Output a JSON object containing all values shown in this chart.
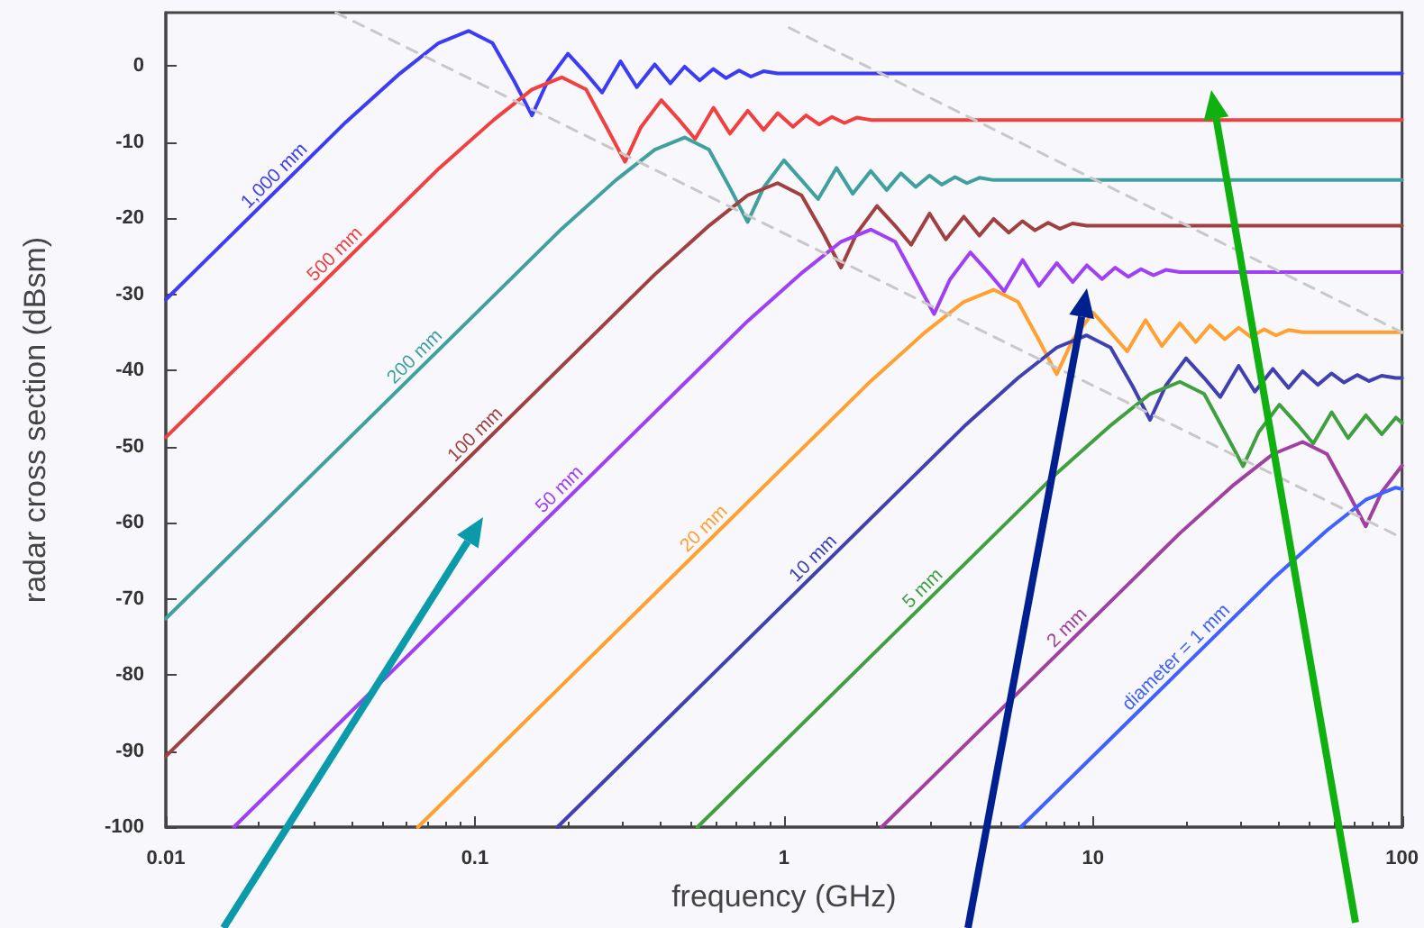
{
  "chart_data": {
    "type": "line",
    "xlabel": "frequency (GHz)",
    "ylabel": "radar cross section (dBsm)",
    "log": "x",
    "xlim": [
      0.01,
      100
    ],
    "xticks": [
      0.01,
      0.1,
      1,
      10,
      100
    ],
    "ylim": [
      -100,
      7
    ],
    "yticks": [
      -100,
      -90,
      -80,
      -70,
      -60,
      -50,
      -40,
      -30,
      -20,
      -10,
      0
    ],
    "grid": false,
    "legend": false,
    "marker": "none",
    "series": [
      {
        "name": "1,000 mm",
        "color": "#3c3cf5",
        "x": [
          0.01,
          0.0382,
          0.0572,
          0.0763,
          0.0954,
          0.114,
          0.134,
          0.153,
          0.172,
          0.2,
          0.229,
          0.258,
          0.296,
          0.334,
          0.382,
          0.429,
          0.477,
          0.534,
          0.591,
          0.649,
          0.716,
          0.782,
          0.859,
          0.954,
          100
        ],
        "values": [
          -30.7,
          -7.4,
          -1.0,
          3.0,
          4.6,
          3.0,
          -2.0,
          -6.5,
          -2.0,
          1.6,
          -1.0,
          -3.5,
          0.6,
          -2.8,
          0.2,
          -2.3,
          -0.1,
          -1.9,
          -0.4,
          -1.6,
          -0.6,
          -1.4,
          -0.7,
          -1.0,
          -1.0
        ]
      },
      {
        "name": "500 mm",
        "color": "#f04040",
        "x": [
          0.01,
          0.0764,
          0.115,
          0.153,
          0.191,
          0.229,
          0.267,
          0.306,
          0.344,
          0.401,
          0.458,
          0.516,
          0.592,
          0.669,
          0.764,
          0.86,
          0.955,
          1.07,
          1.18,
          1.3,
          1.43,
          1.57,
          1.72,
          1.91,
          100
        ],
        "values": [
          -48.8,
          -13.5,
          -7.1,
          -3.1,
          -1.5,
          -3.1,
          -8.1,
          -12.6,
          -8.1,
          -4.5,
          -7.1,
          -9.6,
          -5.5,
          -8.9,
          -5.9,
          -8.4,
          -6.2,
          -8.0,
          -6.5,
          -7.7,
          -6.7,
          -7.5,
          -6.8,
          -7.1,
          -7.1
        ]
      },
      {
        "name": "200 mm",
        "color": "#40a0a0",
        "x": [
          0.01,
          0.191,
          0.286,
          0.382,
          0.477,
          0.572,
          0.668,
          0.763,
          0.859,
          1.0,
          1.14,
          1.29,
          1.48,
          1.67,
          1.91,
          2.15,
          2.39,
          2.67,
          2.96,
          3.24,
          3.58,
          3.91,
          4.29,
          4.77,
          100
        ],
        "values": [
          -72.6,
          -21.4,
          -15.0,
          -11.0,
          -9.4,
          -11.0,
          -16.0,
          -20.5,
          -16.0,
          -12.4,
          -15.0,
          -17.5,
          -13.4,
          -16.8,
          -13.8,
          -16.3,
          -14.1,
          -15.9,
          -14.4,
          -15.6,
          -14.6,
          -15.4,
          -14.7,
          -15.0,
          -15.0
        ]
      },
      {
        "name": "100 mm",
        "color": "#a04040",
        "x": [
          0.01,
          0.382,
          0.572,
          0.763,
          0.954,
          1.14,
          1.34,
          1.53,
          1.72,
          2.0,
          2.29,
          2.58,
          2.96,
          3.34,
          3.82,
          4.29,
          4.77,
          5.34,
          5.91,
          6.49,
          7.16,
          7.82,
          8.59,
          9.54,
          100
        ],
        "values": [
          -90.7,
          -27.4,
          -21.0,
          -17.0,
          -15.4,
          -17.0,
          -22.0,
          -26.5,
          -22.0,
          -18.4,
          -21.0,
          -23.5,
          -19.4,
          -22.8,
          -19.8,
          -22.3,
          -20.1,
          -21.9,
          -20.4,
          -21.6,
          -20.6,
          -21.4,
          -20.7,
          -21.0,
          -21.0
        ]
      },
      {
        "name": "50 mm",
        "color": "#a040f5",
        "x": [
          0.0166,
          0.764,
          1.15,
          1.53,
          1.91,
          2.29,
          2.67,
          3.06,
          3.44,
          4.01,
          4.58,
          5.16,
          5.92,
          6.69,
          7.64,
          8.6,
          9.55,
          10.7,
          11.8,
          13.0,
          14.3,
          15.7,
          17.2,
          19.1,
          100
        ],
        "values": [
          -100,
          -33.5,
          -27.1,
          -23.1,
          -21.5,
          -23.1,
          -28.1,
          -32.6,
          -28.1,
          -24.5,
          -27.1,
          -29.6,
          -25.5,
          -28.9,
          -25.9,
          -28.4,
          -26.2,
          -28.0,
          -26.5,
          -27.7,
          -26.7,
          -27.5,
          -26.8,
          -27.1,
          -27.1
        ]
      },
      {
        "name": "20 mm",
        "color": "#ffa030",
        "x": [
          0.0654,
          1.91,
          2.86,
          3.82,
          4.77,
          5.72,
          6.68,
          7.63,
          8.59,
          10.0,
          11.4,
          12.9,
          14.8,
          16.7,
          19.1,
          21.5,
          23.9,
          26.7,
          29.6,
          32.4,
          35.8,
          39.1,
          42.9,
          47.7,
          100
        ],
        "values": [
          -100,
          -41.4,
          -35.0,
          -31.0,
          -29.4,
          -31.0,
          -36.0,
          -40.5,
          -36.0,
          -32.4,
          -35.0,
          -37.5,
          -33.4,
          -36.8,
          -33.8,
          -36.3,
          -34.1,
          -35.9,
          -34.4,
          -35.6,
          -34.6,
          -35.4,
          -34.7,
          -35.0,
          -35.0
        ]
      },
      {
        "name": "10 mm",
        "color": "#4040b0",
        "x": [
          0.185,
          3.82,
          5.72,
          7.63,
          9.54,
          11.4,
          13.4,
          15.3,
          17.2,
          20.0,
          22.9,
          25.8,
          29.6,
          33.4,
          38.2,
          42.9,
          47.7,
          53.4,
          59.1,
          64.9,
          71.6,
          78.2,
          85.9,
          95.4,
          100
        ],
        "values": [
          -100,
          -47.4,
          -41.0,
          -37.0,
          -35.4,
          -37.0,
          -42.0,
          -46.5,
          -42.0,
          -38.4,
          -41.0,
          -43.5,
          -39.4,
          -42.8,
          -39.8,
          -42.3,
          -40.1,
          -41.9,
          -40.4,
          -41.6,
          -40.6,
          -41.4,
          -40.7,
          -41.0,
          -41.0
        ]
      },
      {
        "name": "5 mm",
        "color": "#40a040",
        "x": [
          0.525,
          7.64,
          11.5,
          15.3,
          19.1,
          22.9,
          26.7,
          30.6,
          34.4,
          40.1,
          45.8,
          51.6,
          59.2,
          66.9,
          76.4,
          86.0,
          95.5,
          100
        ],
        "values": [
          -100,
          -53.5,
          -47.1,
          -43.1,
          -41.5,
          -43.1,
          -48.1,
          -52.6,
          -48.1,
          -44.5,
          -47.1,
          -49.6,
          -45.5,
          -48.9,
          -45.9,
          -48.4,
          -46.2,
          -46.9
        ]
      },
      {
        "name": "2 mm",
        "color": "#a040a0",
        "x": [
          2.07,
          19.1,
          28.6,
          38.2,
          47.7,
          57.2,
          66.8,
          76.3,
          85.9,
          100
        ],
        "values": [
          -100,
          -61.4,
          -55.0,
          -51.0,
          -49.4,
          -51.0,
          -56.0,
          -60.5,
          -56.0,
          -52.5
        ]
      },
      {
        "name": "diameter = 1 mm",
        "color": "#4060ff",
        "x": [
          5.84,
          21,
          38.2,
          57.2,
          76.3,
          95.4,
          100
        ],
        "values": [
          -100,
          -77.8,
          -67.4,
          -61.0,
          -57.0,
          -55.4,
          -55.6
        ]
      },
      {
        "color": "#c8c8c8",
        "line_style": "dashed",
        "x": [
          0.0355,
          100
        ],
        "values": [
          7,
          -62
        ]
      },
      {
        "color": "#c8c8c8",
        "line_style": "dashed",
        "x": [
          1.04,
          100
        ],
        "values": [
          5,
          -35
        ]
      }
    ]
  }
}
